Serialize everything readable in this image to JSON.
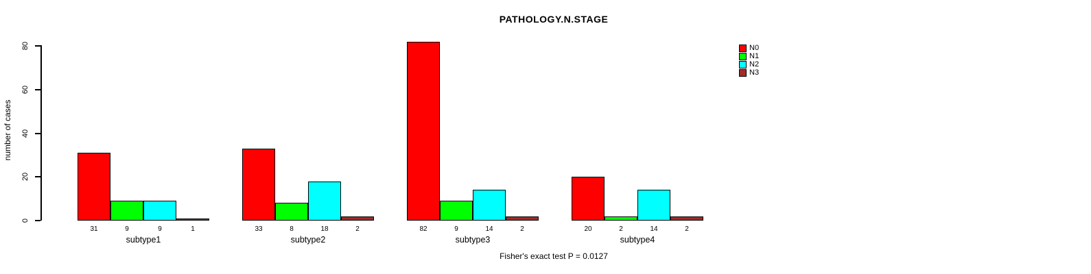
{
  "chart_data": {
    "type": "bar",
    "grouped": true,
    "title": "PATHOLOGY.N.STAGE",
    "ylabel": "number of cases",
    "xlabel": "",
    "annotation": "Fisher's exact test P = 0.0127",
    "categories": [
      "subtype1",
      "subtype2",
      "subtype3",
      "subtype4"
    ],
    "series": [
      {
        "name": "N0",
        "color": "#FF0000",
        "values": [
          31,
          33,
          82,
          20
        ]
      },
      {
        "name": "N1",
        "color": "#00FF00",
        "values": [
          9,
          8,
          9,
          2
        ]
      },
      {
        "name": "N2",
        "color": "#00FFFF",
        "values": [
          9,
          18,
          14,
          14
        ]
      },
      {
        "name": "N3",
        "color": "#A52A2A",
        "values": [
          1,
          2,
          2,
          2
        ]
      }
    ],
    "bar_value_labels": [
      [
        31,
        9,
        9,
        1
      ],
      [
        33,
        8,
        18,
        2
      ],
      [
        82,
        9,
        14,
        2
      ],
      [
        20,
        2,
        14,
        2
      ]
    ],
    "yticks": [
      0,
      20,
      40,
      60,
      80
    ],
    "ylim": [
      0,
      85
    ],
    "grid": false,
    "legend_position": "top-right",
    "legend_entries": [
      "N0",
      "N1",
      "N2",
      "N3"
    ],
    "background_color": "#FFFFFF",
    "axis_color": "#000000"
  }
}
